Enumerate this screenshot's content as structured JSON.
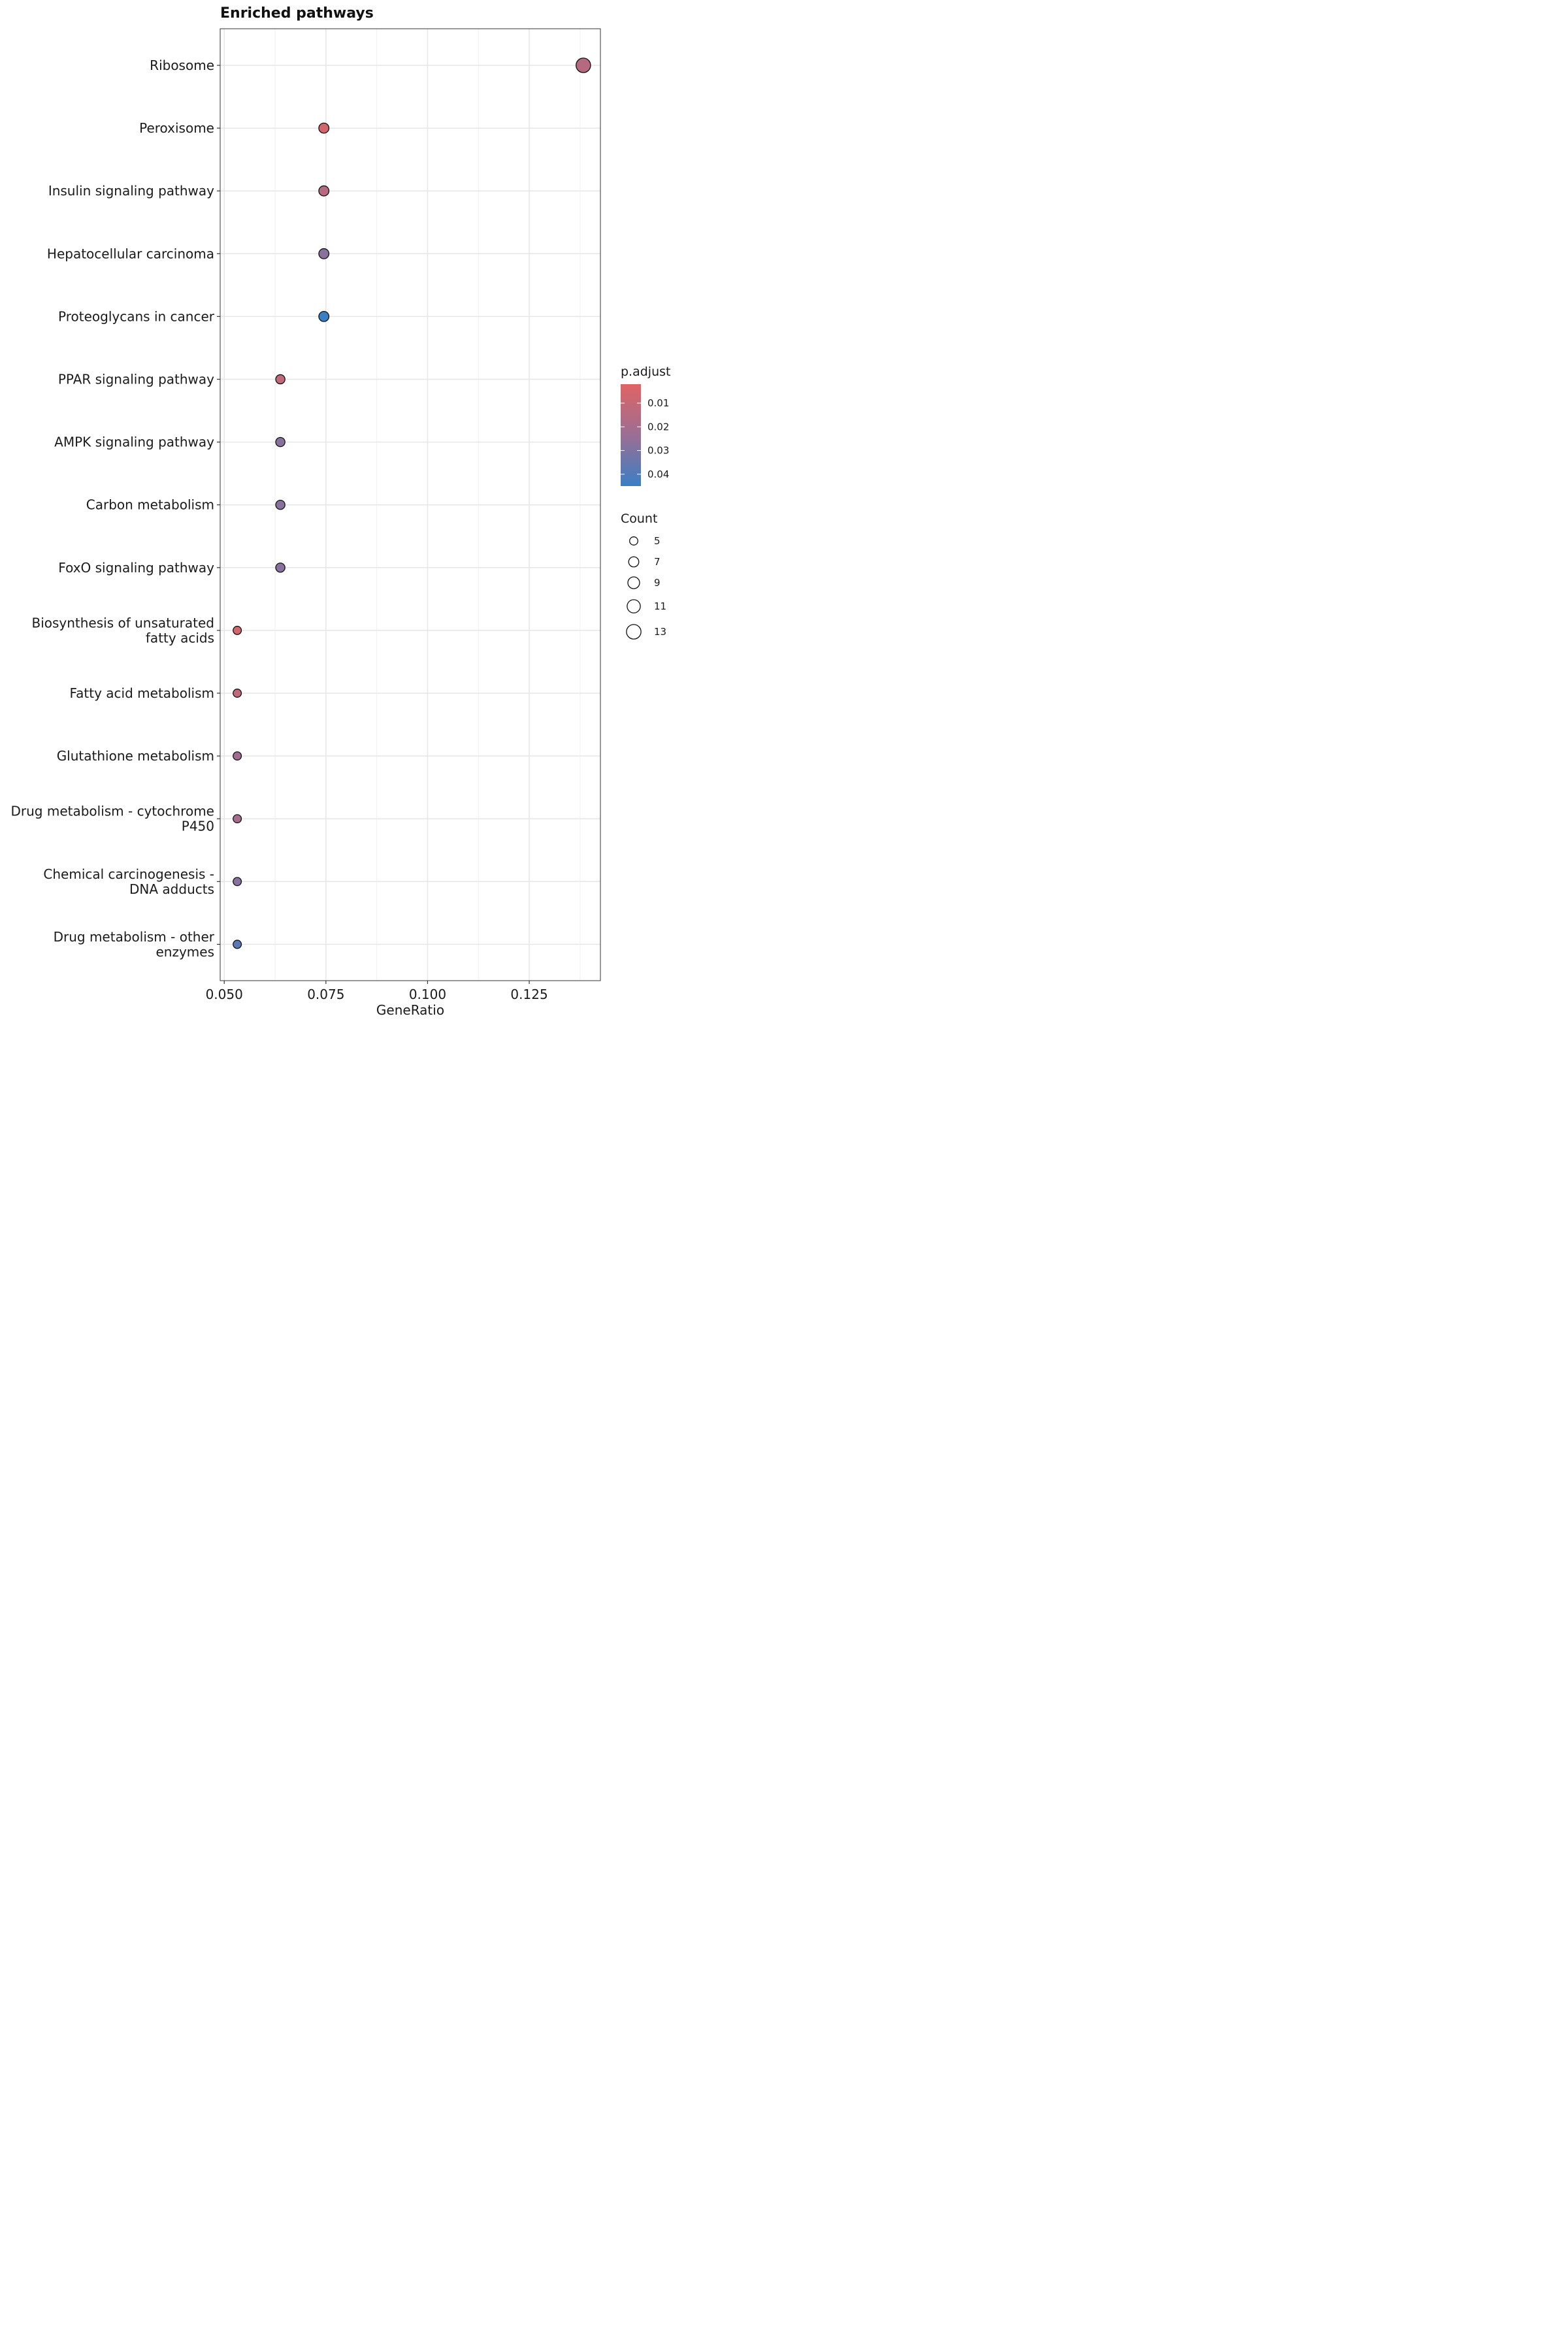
{
  "chart_data": {
    "type": "scatter",
    "title": "Enriched pathways",
    "xlabel": "GeneRatio",
    "ylabel": "",
    "xlim": [
      0.049,
      0.1425
    ],
    "xticks": [
      "0.050",
      "0.075",
      "0.100",
      "0.125"
    ],
    "xtick_values": [
      0.05,
      0.075,
      0.1,
      0.125
    ],
    "grid": true,
    "categories": [
      "Ribosome",
      "Peroxisome",
      "Insulin signaling pathway",
      "Hepatocellular carcinoma",
      "Proteoglycans in cancer",
      "PPAR signaling pathway",
      "AMPK signaling pathway",
      "Carbon metabolism",
      "FoxO signaling pathway",
      "Biosynthesis of unsaturated fatty acids",
      "Fatty acid metabolism",
      "Glutathione metabolism",
      "Drug metabolism - cytochrome P450",
      "Chemical carcinogenesis - DNA adducts",
      "Drug metabolism - other enzymes"
    ],
    "category_display_lines": [
      [
        "Ribosome"
      ],
      [
        "Peroxisome"
      ],
      [
        "Insulin signaling pathway"
      ],
      [
        "Hepatocellular carcinoma"
      ],
      [
        "Proteoglycans in cancer"
      ],
      [
        "PPAR signaling pathway"
      ],
      [
        "AMPK signaling pathway"
      ],
      [
        "Carbon metabolism"
      ],
      [
        "FoxO signaling pathway"
      ],
      [
        "Biosynthesis of unsaturated",
        "fatty acids"
      ],
      [
        "Fatty acid metabolism"
      ],
      [
        "Glutathione metabolism"
      ],
      [
        "Drug metabolism - cytochrome",
        "P450"
      ],
      [
        "Chemical carcinogenesis -",
        "DNA adducts"
      ],
      [
        "Drug metabolism - other",
        "enzymes"
      ]
    ],
    "gene_ratio": [
      0.1383,
      0.0745,
      0.0745,
      0.0745,
      0.0745,
      0.0638,
      0.0638,
      0.0638,
      0.0638,
      0.0532,
      0.0532,
      0.0532,
      0.0532,
      0.0532,
      0.0532
    ],
    "count": [
      13,
      7,
      7,
      7,
      7,
      6,
      6,
      6,
      6,
      5,
      5,
      5,
      5,
      5,
      5
    ],
    "p_adjust": [
      0.015,
      0.006,
      0.015,
      0.028,
      0.045,
      0.012,
      0.028,
      0.028,
      0.028,
      0.006,
      0.012,
      0.022,
      0.02,
      0.028,
      0.038
    ],
    "color_legend": {
      "title": "p.adjust",
      "ticks": [
        "0.01",
        "0.02",
        "0.03",
        "0.04"
      ],
      "tick_values": [
        0.01,
        0.02,
        0.03,
        0.04
      ],
      "range": [
        0.002,
        0.045
      ],
      "low_color": "#e06464",
      "mid_color": "#9b6e93",
      "high_color": "#3a7fc4"
    },
    "size_legend": {
      "title": "Count",
      "labels": [
        "5",
        "7",
        "9",
        "11",
        "13"
      ],
      "values": [
        5,
        7,
        9,
        11,
        13
      ]
    },
    "legend_placement": "right"
  }
}
